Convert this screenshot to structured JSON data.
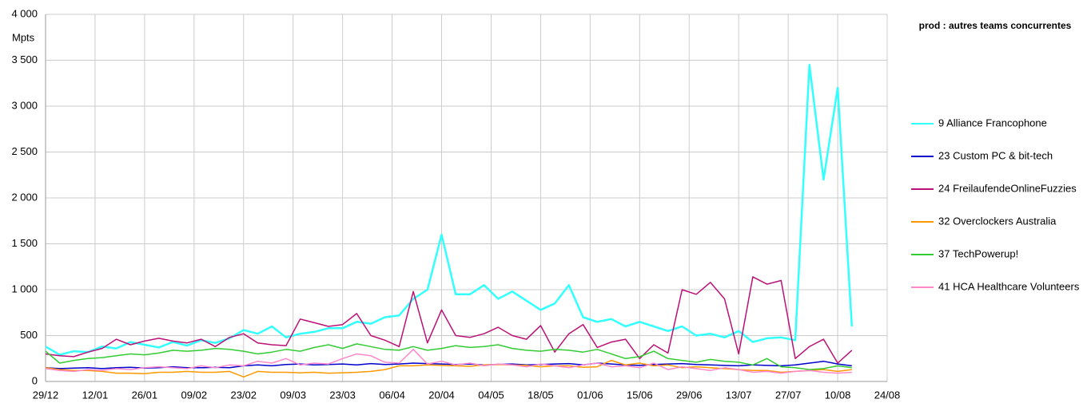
{
  "chart_data": {
    "type": "line",
    "title": "prod : autres teams concurrentes",
    "y_label": "Mpts",
    "x": [
      0,
      4,
      8,
      12,
      16,
      20,
      24,
      28,
      32,
      36,
      40,
      44,
      48,
      52,
      56,
      60,
      64,
      68,
      72,
      76,
      80,
      84,
      88,
      92,
      96,
      100,
      104,
      108,
      112,
      116,
      120,
      124,
      128,
      132,
      136,
      140,
      144,
      148,
      152,
      156,
      160,
      164,
      168,
      172,
      176,
      180,
      184,
      188,
      192,
      196,
      200,
      204,
      208,
      212,
      216,
      220,
      224,
      228
    ],
    "xlim": [
      0,
      238
    ],
    "xticks": [
      {
        "value": 0,
        "label": "29/12"
      },
      {
        "value": 14,
        "label": "12/01"
      },
      {
        "value": 28,
        "label": "26/01"
      },
      {
        "value": 42,
        "label": "09/02"
      },
      {
        "value": 56,
        "label": "23/02"
      },
      {
        "value": 70,
        "label": "09/03"
      },
      {
        "value": 84,
        "label": "23/03"
      },
      {
        "value": 98,
        "label": "06/04"
      },
      {
        "value": 112,
        "label": "20/04"
      },
      {
        "value": 126,
        "label": "04/05"
      },
      {
        "value": 140,
        "label": "18/05"
      },
      {
        "value": 154,
        "label": "01/06"
      },
      {
        "value": 168,
        "label": "15/06"
      },
      {
        "value": 182,
        "label": "29/06"
      },
      {
        "value": 196,
        "label": "13/07"
      },
      {
        "value": 210,
        "label": "27/07"
      },
      {
        "value": 224,
        "label": "10/08"
      },
      {
        "value": 238,
        "label": "24/08"
      }
    ],
    "ylim": [
      0,
      4000
    ],
    "yticks": [
      0,
      500,
      {
        "value": 1000,
        "label": "1 000"
      },
      {
        "value": 1500,
        "label": "1 500"
      },
      {
        "value": 2000,
        "label": "2 000"
      },
      {
        "value": 2500,
        "label": "2 500"
      },
      {
        "value": 3000,
        "label": "3 000"
      },
      {
        "value": 3500,
        "label": "3 500"
      },
      {
        "value": 4000,
        "label": "4 000"
      }
    ],
    "grid": true,
    "legend": "right",
    "series": [
      {
        "name": "9 Alliance Francophone",
        "color": "#33ffff",
        "values": [
          380,
          290,
          330,
          320,
          380,
          360,
          430,
          400,
          370,
          430,
          390,
          450,
          420,
          470,
          560,
          520,
          600,
          480,
          520,
          540,
          580,
          580,
          650,
          630,
          700,
          720,
          900,
          1000,
          1600,
          950,
          950,
          1050,
          900,
          980,
          880,
          780,
          850,
          1050,
          700,
          650,
          680,
          600,
          650,
          600,
          550,
          600,
          500,
          520,
          480,
          550,
          430,
          470,
          480,
          450,
          3450,
          2200,
          3200,
          600
        ]
      },
      {
        "name": "23 Custom PC & bit-tech",
        "color": "#0000cc",
        "values": [
          150,
          140,
          145,
          150,
          140,
          150,
          155,
          145,
          150,
          160,
          150,
          150,
          155,
          150,
          170,
          180,
          170,
          185,
          190,
          180,
          185,
          190,
          180,
          195,
          185,
          190,
          200,
          195,
          190,
          185,
          190,
          180,
          185,
          190,
          180,
          185,
          190,
          195,
          180,
          200,
          190,
          180,
          175,
          185,
          190,
          195,
          185,
          180,
          175,
          170,
          180,
          175,
          170,
          180,
          200,
          220,
          190,
          170
        ]
      },
      {
        "name": "24 FreilaufendeOnlineFuzzies",
        "color": "#bb1177",
        "values": [
          300,
          280,
          270,
          320,
          360,
          460,
          400,
          440,
          470,
          440,
          420,
          460,
          380,
          480,
          520,
          420,
          400,
          390,
          680,
          640,
          600,
          620,
          740,
          500,
          450,
          380,
          980,
          420,
          780,
          500,
          480,
          520,
          590,
          500,
          460,
          610,
          320,
          520,
          620,
          370,
          430,
          460,
          250,
          400,
          310,
          1000,
          950,
          1080,
          900,
          300,
          1140,
          1060,
          1100,
          250,
          380,
          460,
          200,
          340
        ]
      },
      {
        "name": "32 Overclockers Australia",
        "color": "#ff9900",
        "values": [
          150,
          130,
          120,
          120,
          110,
          90,
          90,
          85,
          100,
          100,
          110,
          100,
          100,
          110,
          50,
          110,
          100,
          100,
          95,
          100,
          90,
          95,
          100,
          110,
          130,
          170,
          170,
          180,
          175,
          170,
          165,
          180,
          185,
          180,
          175,
          160,
          170,
          170,
          155,
          160,
          230,
          180,
          200,
          170,
          180,
          150,
          160,
          150,
          140,
          130,
          120,
          120,
          100,
          110,
          120,
          130,
          110,
          130
        ]
      },
      {
        "name": "37 TechPowerup!",
        "color": "#33cc33",
        "values": [
          330,
          200,
          230,
          250,
          260,
          280,
          300,
          290,
          310,
          340,
          330,
          340,
          360,
          350,
          330,
          300,
          320,
          350,
          330,
          370,
          400,
          360,
          410,
          380,
          350,
          340,
          380,
          340,
          360,
          390,
          370,
          380,
          400,
          360,
          340,
          330,
          350,
          340,
          320,
          350,
          300,
          250,
          270,
          330,
          250,
          230,
          210,
          240,
          220,
          210,
          180,
          250,
          160,
          150,
          130,
          140,
          170,
          150
        ]
      },
      {
        "name": "41 HCA Healthcare Volunteers",
        "color": "#ff88cc",
        "values": [
          140,
          120,
          110,
          130,
          120,
          140,
          130,
          150,
          160,
          150,
          140,
          170,
          150,
          180,
          170,
          220,
          200,
          250,
          180,
          200,
          190,
          250,
          300,
          280,
          210,
          200,
          350,
          190,
          220,
          180,
          200,
          170,
          190,
          180,
          160,
          190,
          170,
          150,
          180,
          200,
          160,
          170,
          150,
          200,
          130,
          160,
          140,
          120,
          150,
          130,
          100,
          110,
          90,
          110,
          120,
          100,
          90,
          100
        ]
      }
    ]
  }
}
